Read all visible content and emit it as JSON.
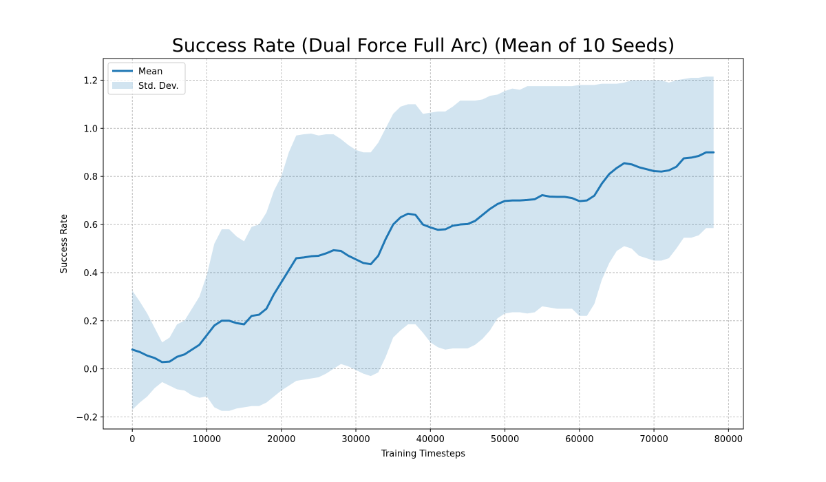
{
  "chart_data": {
    "type": "line",
    "title": "Success Rate (Dual Force Full Arc) (Mean of 10 Seeds)",
    "xlabel": "Training Timesteps",
    "ylabel": "Success Rate",
    "xlim": [
      -3900,
      82000
    ],
    "ylim": [
      -0.25,
      1.29
    ],
    "xticks": [
      0,
      10000,
      20000,
      30000,
      40000,
      50000,
      60000,
      70000,
      80000
    ],
    "yticks": [
      -0.2,
      0.0,
      0.2,
      0.4,
      0.6,
      0.8,
      1.0,
      1.2
    ],
    "ytick_labels": [
      "−0.2",
      "0.0",
      "0.2",
      "0.4",
      "0.6",
      "0.8",
      "1.0",
      "1.2"
    ],
    "grid": true,
    "legend_position": "top-left",
    "colors": {
      "mean": "#1f77b4",
      "band": "#1f77b4"
    },
    "series": [
      {
        "name": "Mean",
        "x": [
          0,
          1000,
          2000,
          3000,
          4000,
          5000,
          6000,
          7000,
          8000,
          9000,
          10000,
          11000,
          12000,
          13000,
          14000,
          15000,
          16000,
          17000,
          18000,
          19000,
          20000,
          21000,
          22000,
          23000,
          24000,
          25000,
          26000,
          27000,
          28000,
          29000,
          30000,
          31000,
          32000,
          33000,
          34000,
          35000,
          36000,
          37000,
          38000,
          39000,
          40000,
          41000,
          42000,
          43000,
          44000,
          45000,
          46000,
          47000,
          48000,
          49000,
          50000,
          51000,
          52000,
          53000,
          54000,
          55000,
          56000,
          57000,
          58000,
          59000,
          60000,
          61000,
          62000,
          63000,
          64000,
          65000,
          66000,
          67000,
          68000,
          69000,
          70000,
          71000,
          72000,
          73000,
          74000,
          75000,
          76000,
          77000,
          78000
        ],
        "values": [
          0.08,
          0.07,
          0.055,
          0.045,
          0.028,
          0.03,
          0.05,
          0.06,
          0.08,
          0.1,
          0.14,
          0.18,
          0.2,
          0.2,
          0.19,
          0.185,
          0.22,
          0.225,
          0.25,
          0.31,
          0.36,
          0.41,
          0.46,
          0.463,
          0.468,
          0.47,
          0.48,
          0.493,
          0.49,
          0.47,
          0.455,
          0.44,
          0.435,
          0.47,
          0.54,
          0.6,
          0.63,
          0.645,
          0.64,
          0.6,
          0.588,
          0.578,
          0.58,
          0.595,
          0.6,
          0.602,
          0.615,
          0.64,
          0.665,
          0.685,
          0.698,
          0.7,
          0.7,
          0.702,
          0.705,
          0.722,
          0.716,
          0.715,
          0.715,
          0.71,
          0.697,
          0.7,
          0.72,
          0.77,
          0.81,
          0.835,
          0.855,
          0.85,
          0.838,
          0.83,
          0.822,
          0.82,
          0.825,
          0.84,
          0.875,
          0.878,
          0.885,
          0.9,
          0.9
        ]
      },
      {
        "name": "Std. Dev.",
        "x": [
          0,
          1000,
          2000,
          3000,
          4000,
          5000,
          6000,
          7000,
          8000,
          9000,
          10000,
          11000,
          12000,
          13000,
          14000,
          15000,
          16000,
          17000,
          18000,
          19000,
          20000,
          21000,
          22000,
          23000,
          24000,
          25000,
          26000,
          27000,
          28000,
          29000,
          30000,
          31000,
          32000,
          33000,
          34000,
          35000,
          36000,
          37000,
          38000,
          39000,
          40000,
          41000,
          42000,
          43000,
          44000,
          45000,
          46000,
          47000,
          48000,
          49000,
          50000,
          51000,
          52000,
          53000,
          54000,
          55000,
          56000,
          57000,
          58000,
          59000,
          60000,
          61000,
          62000,
          63000,
          64000,
          65000,
          66000,
          67000,
          68000,
          69000,
          70000,
          71000,
          72000,
          73000,
          74000,
          75000,
          76000,
          77000,
          78000
        ],
        "upper": [
          0.325,
          0.28,
          0.23,
          0.17,
          0.11,
          0.13,
          0.185,
          0.2,
          0.25,
          0.3,
          0.39,
          0.52,
          0.58,
          0.58,
          0.55,
          0.53,
          0.59,
          0.6,
          0.65,
          0.74,
          0.8,
          0.9,
          0.97,
          0.975,
          0.978,
          0.97,
          0.975,
          0.975,
          0.955,
          0.93,
          0.91,
          0.9,
          0.9,
          0.94,
          1.0,
          1.06,
          1.09,
          1.1,
          1.1,
          1.06,
          1.065,
          1.07,
          1.07,
          1.09,
          1.115,
          1.115,
          1.115,
          1.12,
          1.135,
          1.14,
          1.155,
          1.165,
          1.16,
          1.175,
          1.175,
          1.175,
          1.175,
          1.175,
          1.175,
          1.175,
          1.18,
          1.18,
          1.18,
          1.185,
          1.185,
          1.185,
          1.19,
          1.2,
          1.2,
          1.2,
          1.2,
          1.2,
          1.19,
          1.2,
          1.205,
          1.21,
          1.21,
          1.215,
          1.215
        ],
        "lower": [
          -0.17,
          -0.14,
          -0.115,
          -0.08,
          -0.055,
          -0.07,
          -0.085,
          -0.09,
          -0.11,
          -0.12,
          -0.115,
          -0.16,
          -0.175,
          -0.175,
          -0.165,
          -0.16,
          -0.155,
          -0.155,
          -0.14,
          -0.115,
          -0.09,
          -0.07,
          -0.05,
          -0.045,
          -0.04,
          -0.035,
          -0.02,
          0.0,
          0.02,
          0.01,
          -0.005,
          -0.02,
          -0.03,
          -0.015,
          0.05,
          0.13,
          0.16,
          0.185,
          0.185,
          0.15,
          0.11,
          0.09,
          0.08,
          0.085,
          0.085,
          0.085,
          0.1,
          0.125,
          0.16,
          0.21,
          0.23,
          0.235,
          0.235,
          0.23,
          0.235,
          0.26,
          0.255,
          0.25,
          0.25,
          0.25,
          0.22,
          0.22,
          0.27,
          0.37,
          0.44,
          0.49,
          0.51,
          0.5,
          0.47,
          0.46,
          0.45,
          0.45,
          0.46,
          0.5,
          0.545,
          0.545,
          0.555,
          0.585,
          0.585
        ]
      }
    ]
  }
}
